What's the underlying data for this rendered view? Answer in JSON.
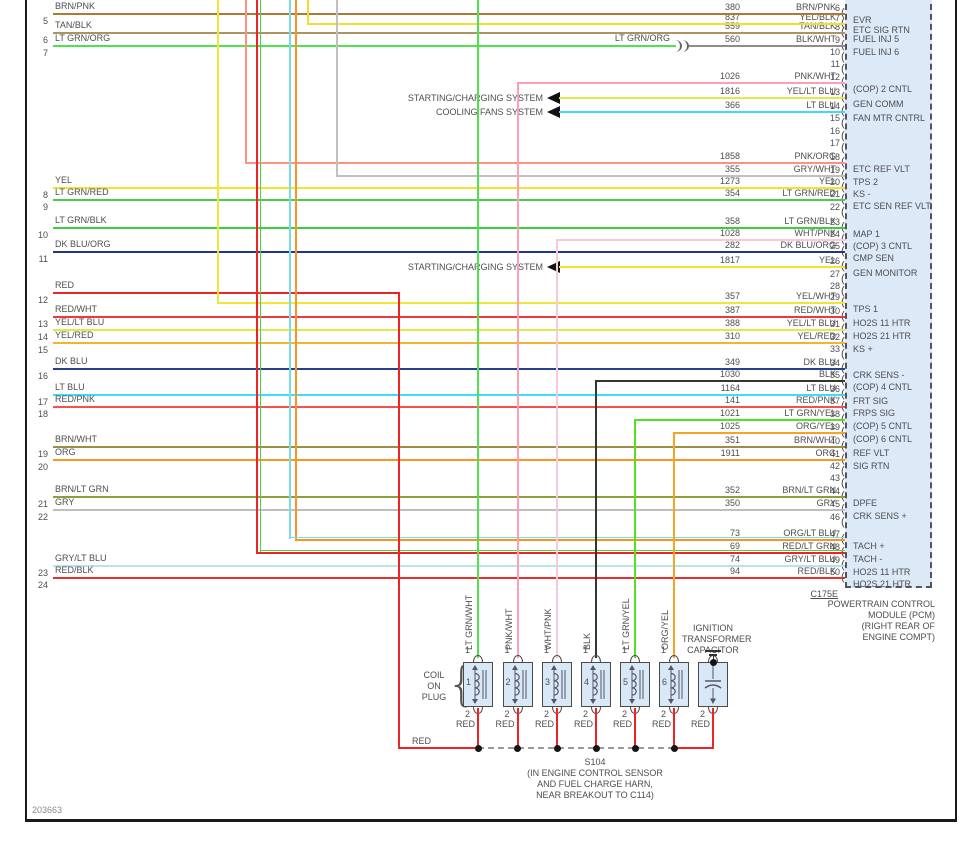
{
  "doc_number": "203663",
  "colors": {
    "BRN/PNK": "#ab7b34",
    "YEL/BLK": "#efe02f",
    "TAN/BLK": "#ad935f",
    "BLK/WHT": "#8d8d8d",
    "LT GRN/ORG": "#4ee24e",
    "PNK/WHT": "#ff9fb6",
    "YEL/LT BLU": "#e2e94f",
    "LT BLU": "#3bdef2",
    "PNK/ORG": "#ff9180",
    "GRY/WHT": "#c0c0c0",
    "YEL": "#f2e42c",
    "LT GRN/RED": "#4fc94f",
    "LT GRN/BLK": "#38d038",
    "DK BLU/ORG": "#213780",
    "RED": "#ee2424",
    "YEL/WHT": "#f0e63a",
    "RED/WHT": "#f13838",
    "YEL/RED": "#f4b42c",
    "DK BLU": "#28418f",
    "BLK": "#2e3a2e",
    "RED/PNK": "#f35050",
    "LT GRN/YEL": "#53e120",
    "ORG/YEL": "#f5a423",
    "BRN/WHT": "#9d8d49",
    "ORG": "#f89421",
    "BRN/LT GRN": "#8f9d3f",
    "GRY": "#bebebe",
    "ORG/LT BLU": "#f89421",
    "RED/LT GRN": "#ee2424",
    "GRY/LT BLU": "#b8e3e9",
    "RED/BLK": "#e72d2d",
    "LT GRN/WHT": "#4ee24e",
    "WHT/PNK": "#f6cada"
  },
  "accent_stripes": {
    "ORG/LT BLU": "#7adce8",
    "RED/LT GRN": "#56cc45"
  },
  "pcm": {
    "connector_label": "C175E",
    "caption_lines": [
      "POWERTRAIN CONTROL",
      "MODULE (PCM)",
      "(RIGHT REAR OF",
      "ENGINE COMPT)"
    ],
    "pins": [
      {
        "pin": "6",
        "label": "EVR",
        "wire": "380",
        "color": "BRN/PNK"
      },
      {
        "pin": "7",
        "label": "ETC SIG RTN",
        "wire": "837",
        "color": "YEL/BLK"
      },
      {
        "pin": "8",
        "label": "FUEL INJ 5",
        "wire": "559",
        "color": "TAN/BLK"
      },
      {
        "pin": "9",
        "label": "FUEL INJ 6",
        "wire": "560",
        "color": "BLK/WHT"
      },
      {
        "pin": "10"
      },
      {
        "pin": "11"
      },
      {
        "pin": "12",
        "label": "(COP) 2 CNTL",
        "wire": "1026",
        "color": "PNK/WHT"
      },
      {
        "pin": "13",
        "label": "GEN COMM",
        "wire": "1816",
        "color": "YEL/LT BLU"
      },
      {
        "pin": "14",
        "label": "FAN MTR CNTRL",
        "wire": "366",
        "color": "LT BLU"
      },
      {
        "pin": "15"
      },
      {
        "pin": "16"
      },
      {
        "pin": "17"
      },
      {
        "pin": "18",
        "label": "ETC REF VLT",
        "wire": "1858",
        "color": "PNK/ORG"
      },
      {
        "pin": "19",
        "label": "TPS 2",
        "wire": "355",
        "color": "GRY/WHT"
      },
      {
        "pin": "20",
        "label": "KS -",
        "wire": "1273",
        "color": "YEL"
      },
      {
        "pin": "21",
        "label": "ETC SEN REF VLT",
        "wire": "354",
        "color": "LT GRN/RED"
      },
      {
        "pin": "22"
      },
      {
        "pin": "23",
        "label": "MAP 1",
        "wire": "358",
        "color": "LT GRN/BLK"
      },
      {
        "pin": "24",
        "label": "(COP) 3 CNTL",
        "wire": "1028",
        "color": "WHT/PNK"
      },
      {
        "pin": "25",
        "label": "CMP SEN",
        "wire": "282",
        "color": "DK BLU/ORG"
      },
      {
        "pin": "26",
        "label": "GEN MONITOR",
        "wire": "1817",
        "color": "YEL"
      },
      {
        "pin": "27"
      },
      {
        "pin": "28"
      },
      {
        "pin": "29",
        "label": "TPS 1",
        "wire": "357",
        "color": "YEL/WHT"
      },
      {
        "pin": "30",
        "label": "HO2S 11 HTR",
        "wire": "387",
        "color": "RED/WHT"
      },
      {
        "pin": "31",
        "label": "HO2S 21 HTR",
        "wire": "388",
        "color": "YEL/LT BLU"
      },
      {
        "pin": "32",
        "label": "KS +",
        "wire": "310",
        "color": "YEL/RED"
      },
      {
        "pin": "33"
      },
      {
        "pin": "34",
        "label": "CRK SENS -",
        "wire": "349",
        "color": "DK BLU"
      },
      {
        "pin": "35",
        "label": "(COP) 4 CNTL",
        "wire": "1030",
        "color": "BLK"
      },
      {
        "pin": "36",
        "label": "FRT SIG",
        "wire": "1164",
        "color": "LT BLU"
      },
      {
        "pin": "37",
        "label": "FRPS SIG",
        "wire": "141",
        "color": "RED/PNK"
      },
      {
        "pin": "38",
        "label": "(COP) 5 CNTL",
        "wire": "1021",
        "color": "LT GRN/YEL"
      },
      {
        "pin": "39",
        "label": "(COP) 6 CNTL",
        "wire": "1025",
        "color": "ORG/YEL"
      },
      {
        "pin": "40",
        "label": "REF VLT",
        "wire": "351",
        "color": "BRN/WHT"
      },
      {
        "pin": "41",
        "label": "SIG RTN",
        "wire": "1911",
        "color": "ORG"
      },
      {
        "pin": "42"
      },
      {
        "pin": "43"
      },
      {
        "pin": "44",
        "label": "DPFE",
        "wire": "352",
        "color": "BRN/LT GRN"
      },
      {
        "pin": "45",
        "label": "CRK SENS +",
        "wire": "350",
        "color": "GRY"
      },
      {
        "pin": "46"
      },
      {
        "pin": "47",
        "label": "TACH +",
        "wire": "73",
        "color": "ORG/LT BLU"
      },
      {
        "pin": "48",
        "label": "TACH -",
        "wire": "69",
        "color": "RED/LT GRN"
      },
      {
        "pin": "49",
        "label": "HO2S 11 HTR",
        "wire": "74",
        "color": "GRY/LT BLU"
      },
      {
        "pin": "50",
        "label": "HO2S 21 HTR",
        "wire": "94",
        "color": "RED/BLK"
      }
    ]
  },
  "left_wires": [
    {
      "num": "5",
      "color": "BRN/PNK"
    },
    {
      "num": "6",
      "color": "TAN/BLK"
    },
    {
      "num": "7",
      "color": "LT GRN/ORG"
    },
    {
      "num": "8",
      "color": "YEL"
    },
    {
      "num": "9",
      "color": "LT GRN/RED"
    },
    {
      "num": "10",
      "color": "LT GRN/BLK"
    },
    {
      "num": "11",
      "color": "DK BLU/ORG"
    },
    {
      "num": "12",
      "color": "RED"
    },
    {
      "num": "13",
      "color": "RED/WHT"
    },
    {
      "num": "14",
      "color": "YEL/LT BLU"
    },
    {
      "num": "15",
      "color": "YEL/RED"
    },
    {
      "num": "16",
      "color": "DK BLU"
    },
    {
      "num": "17",
      "color": "LT BLU"
    },
    {
      "num": "18",
      "color": "RED/PNK"
    },
    {
      "num": "19",
      "color": "BRN/WHT"
    },
    {
      "num": "20",
      "color": "ORG"
    },
    {
      "num": "21",
      "color": "BRN/LT GRN"
    },
    {
      "num": "22",
      "color": "GRY"
    },
    {
      "num": "23",
      "color": "GRY/LT BLU"
    },
    {
      "num": "24",
      "color": "RED/BLK"
    }
  ],
  "system_links": [
    {
      "label": "STARTING/CHARGING SYSTEM"
    },
    {
      "label": "COOLING FANS SYSTEM"
    },
    {
      "label": "STARTING/CHARGING SYSTEM"
    }
  ],
  "inline_connector_label": "LT GRN/ORG",
  "coil_group": {
    "label_lines": [
      "COIL",
      "ON",
      "PLUG"
    ],
    "pin_top": "1",
    "pin_bottom": "2",
    "bottom_wire_color": "RED",
    "items": [
      {
        "num": "1",
        "wire_color": "LT GRN/WHT"
      },
      {
        "num": "2",
        "wire_color": "PNK/WHT"
      },
      {
        "num": "3",
        "wire_color": "WHT/PNK"
      },
      {
        "num": "4",
        "wire_color": "BLK"
      },
      {
        "num": "5",
        "wire_color": "LT GRN/YEL"
      },
      {
        "num": "6",
        "wire_color": "ORG/YEL"
      }
    ]
  },
  "capacitor": {
    "label_lines": [
      "IGNITION",
      "TRANSFORMER",
      "CAPACITOR"
    ]
  },
  "splice": {
    "name": "S104",
    "wire_color": "RED",
    "note_lines": [
      "(IN ENGINE CONTROL SENSOR",
      "AND FUEL CHARGE HARN,",
      "NEAR BREAKOUT TO C114)"
    ]
  }
}
